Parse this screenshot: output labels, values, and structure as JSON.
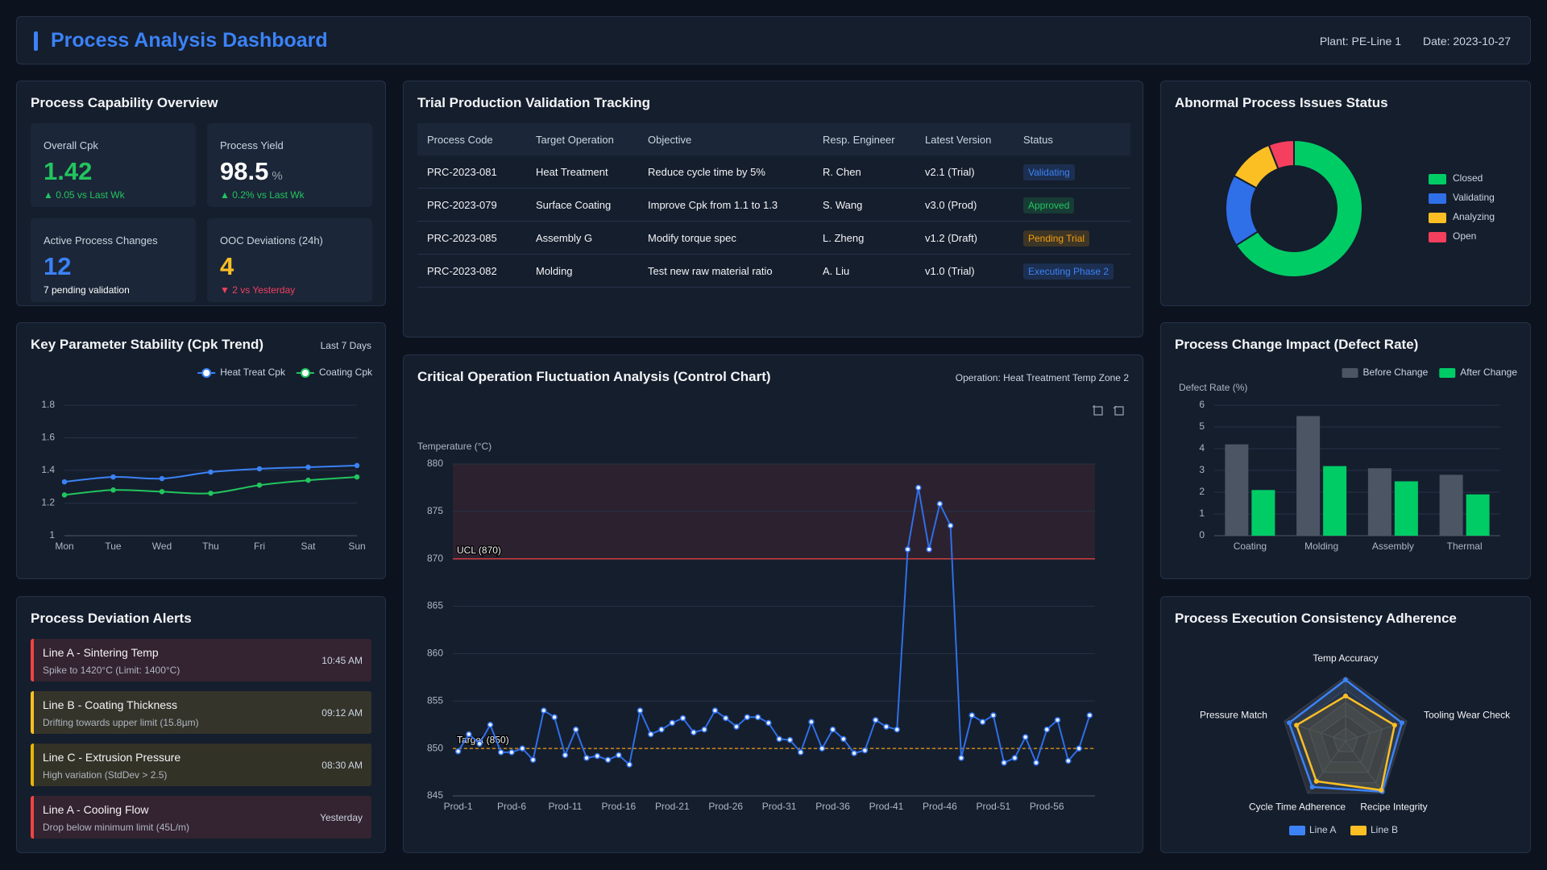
{
  "header": {
    "title": "Process Analysis Dashboard",
    "plant": "Plant: PE-Line 1",
    "date": "Date: 2023-10-27"
  },
  "capability": {
    "title": "Process Capability Overview",
    "cards": [
      {
        "label": "Overall Cpk",
        "value": 1.42,
        "note": "▲ 0.05 vs Last Wk",
        "color": "#22c55e",
        "note_color": "#22c55e"
      },
      {
        "label": "Process Yield",
        "value": 98.5,
        "unit": "%",
        "note": "▲ 0.2% vs Last Wk",
        "color": "#ffffff",
        "note_color": "#22c55e"
      },
      {
        "label": "Active Process Changes",
        "value": 12,
        "note": "7 pending validation",
        "color": "#3b82f6",
        "note_color": "#ffffff"
      },
      {
        "label": "OOC Deviations (24h)",
        "value": 4,
        "note": "▼ 2 vs Yesterday",
        "color": "#fbbf24",
        "note_color": "#f43f5e"
      }
    ]
  },
  "trials": {
    "title": "Trial Production Validation Tracking",
    "columns": [
      "Process Code",
      "Target Operation",
      "Objective",
      "Resp. Engineer",
      "Latest Version",
      "Status"
    ],
    "rows": [
      [
        "PRC-2023-081",
        "Heat Treatment",
        "Reduce cycle time by 5%",
        "R. Chen",
        "v2.1 (Trial)",
        "Validating"
      ],
      [
        "PRC-2023-079",
        "Surface Coating",
        "Improve Cpk from 1.1 to 1.3",
        "S. Wang",
        "v3.0 (Prod)",
        "Approved"
      ],
      [
        "PRC-2023-085",
        "Assembly G",
        "Modify torque spec",
        "L. Zheng",
        "v1.2 (Draft)",
        "Pending Trial"
      ],
      [
        "PRC-2023-082",
        "Molding",
        "Test new raw material ratio",
        "A. Liu",
        "v1.0 (Trial)",
        "Executing Phase 2"
      ]
    ],
    "status_colors": [
      "#3b82f6",
      "#22c55e",
      "#f59e0b",
      "#3b82f6"
    ]
  },
  "alerts": {
    "title": "Process Deviation Alerts",
    "items": [
      {
        "title": "Line A - Sintering Temp",
        "detail": "Spike to 1420°C (Limit: 1400°C)",
        "time": "10:45 AM",
        "color": "#ef4444"
      },
      {
        "title": "Line B - Coating Thickness",
        "detail": "Drifting towards upper limit (15.8µm)",
        "time": "09:12 AM",
        "color": "#fbbf24"
      },
      {
        "title": "Line C - Extrusion Pressure",
        "detail": "High variation (StdDev > 2.5)",
        "time": "08:30 AM",
        "color": "#eab308"
      },
      {
        "title": "Line A - Cooling Flow",
        "detail": "Drop below minimum limit (45L/m)",
        "time": "Yesterday",
        "color": "#ef4444"
      }
    ]
  },
  "chart_data": [
    {
      "type": "pie",
      "title": "Abnormal Process Issues Status",
      "categories": [
        "Closed",
        "Validating",
        "Analyzing",
        "Open"
      ],
      "values": [
        66,
        17,
        11,
        6
      ],
      "colors": [
        "#00cc66",
        "#2f6fe8",
        "#fbbf24",
        "#f43f5e"
      ],
      "donut": true,
      "legend": "right"
    },
    {
      "type": "line",
      "title": "Key Parameter Stability (Cpk Trend)",
      "subtitle": "Last 7 Days",
      "categories": [
        "Mon",
        "Tue",
        "Wed",
        "Thu",
        "Fri",
        "Sat",
        "Sun"
      ],
      "series": [
        {
          "name": "Heat Treat Cpk",
          "color": "#3b82f6",
          "values": [
            1.33,
            1.36,
            1.35,
            1.39,
            1.41,
            1.42,
            1.43
          ]
        },
        {
          "name": "Coating Cpk",
          "color": "#22c55e",
          "values": [
            1.25,
            1.28,
            1.27,
            1.26,
            1.31,
            1.34,
            1.36
          ]
        }
      ],
      "ylim": [
        1,
        1.8
      ],
      "yticks": [
        1,
        1.2,
        1.4,
        1.6,
        1.8
      ],
      "grid": true,
      "smooth": true,
      "legend": "top-right"
    },
    {
      "type": "line",
      "title": "Critical Operation Fluctuation Analysis (Control Chart)",
      "subtitle": "Operation: Heat Treatment Temp Zone 2",
      "y_label": "Temperature (°C)",
      "categories": [
        "Prod-1",
        null,
        null,
        null,
        null,
        "Prod-6",
        null,
        null,
        null,
        null,
        "Prod-11",
        null,
        null,
        null,
        null,
        "Prod-16",
        null,
        null,
        null,
        null,
        "Prod-21",
        null,
        null,
        null,
        null,
        "Prod-26",
        null,
        null,
        null,
        null,
        "Prod-31",
        null,
        null,
        null,
        null,
        "Prod-36",
        null,
        null,
        null,
        null,
        "Prod-41",
        null,
        null,
        null,
        null,
        "Prod-46",
        null,
        null,
        null,
        null,
        "Prod-51",
        null,
        null,
        null,
        null,
        "Prod-56",
        null,
        null,
        null,
        null
      ],
      "values": [
        849.7,
        851.5,
        850.5,
        852.5,
        849.6,
        849.6,
        850,
        848.8,
        854,
        853.3,
        849.3,
        852,
        849,
        849.2,
        848.8,
        849.3,
        848.3,
        854,
        851.5,
        852,
        852.7,
        853.2,
        851.7,
        852,
        854,
        853.2,
        852.3,
        853.3,
        853.3,
        852.7,
        851,
        850.9,
        849.6,
        852.8,
        850,
        852,
        851,
        849.5,
        849.8,
        853,
        852.3,
        852,
        871,
        877.5,
        871,
        875.8,
        873.5,
        849,
        853.5,
        852.8,
        853.5,
        848.5,
        849,
        851.2,
        848.5,
        852,
        853,
        848.7,
        850,
        853.5
      ],
      "color": "#2f6fe8",
      "ylim": [
        845,
        880
      ],
      "yticks": [
        845,
        850,
        855,
        860,
        865,
        870,
        875,
        880
      ],
      "grid": true,
      "smooth": false,
      "ucl": {
        "value": 870,
        "label": "UCL (870)",
        "color": "#ef4444"
      },
      "target": {
        "value": 850,
        "label": "Target (850)",
        "color": "#f59e0b"
      }
    },
    {
      "type": "bar",
      "title": "Process Change Impact (Defect Rate)",
      "y_label": "Defect Rate (%)",
      "categories": [
        "Coating",
        "Molding",
        "Assembly",
        "Thermal"
      ],
      "series": [
        {
          "name": "Before Change",
          "color": "#4b5563",
          "values": [
            4.2,
            5.5,
            3.1,
            2.8
          ]
        },
        {
          "name": "After Change",
          "color": "#00cc66",
          "values": [
            2.1,
            3.2,
            2.5,
            1.9
          ]
        }
      ],
      "ylim": [
        0,
        6
      ],
      "yticks": [
        0,
        1,
        2,
        3,
        4,
        5,
        6
      ],
      "grid": true,
      "legend": "top-right"
    },
    {
      "type": "radar",
      "title": "Process Execution Consistency Adherence",
      "categories": [
        "Temp Accuracy",
        "Tooling Wear Check",
        "Recipe Integrity",
        "Cycle Time Adherence",
        "Pressure Match"
      ],
      "series": [
        {
          "name": "Line A",
          "color": "#3b82f6",
          "values": [
            95,
            92,
            97,
            88,
            92
          ]
        },
        {
          "name": "Line B",
          "color": "#fbbf24",
          "values": [
            70,
            80,
            94,
            77,
            80
          ]
        }
      ],
      "rlim": [
        0,
        100
      ],
      "legend": "bottom"
    }
  ]
}
